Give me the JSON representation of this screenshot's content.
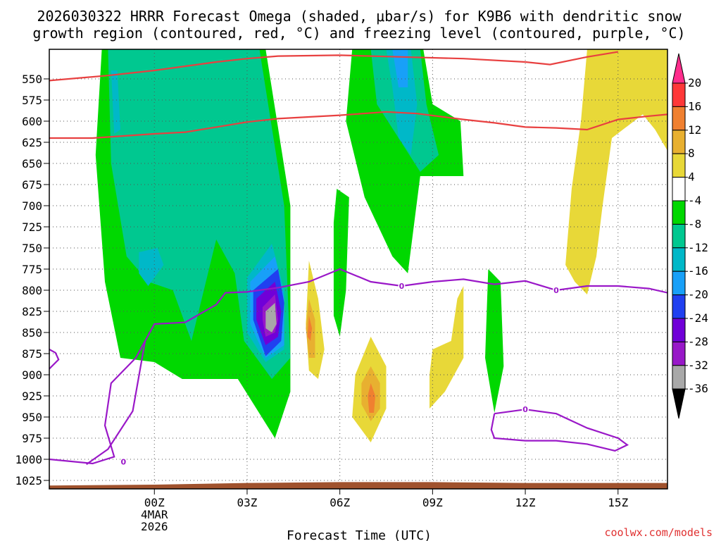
{
  "chart_data": {
    "type": "filled-contour",
    "title_line1": "2026030322 HRRR Forecast Omega (shaded, μbar/s) for K9B6 with dendritic snow",
    "title_line2": "growth region (contoured, red, °C) and freezing level (contoured, purple, °C)",
    "xlabel": "Forecast Time (UTC)",
    "credit": "coolwx.com/models",
    "x_range_hours": [
      -3.4,
      16.6
    ],
    "y_range_hpa": [
      1035,
      515
    ],
    "pressure_ticks": [
      550,
      575,
      600,
      625,
      650,
      675,
      700,
      725,
      750,
      775,
      800,
      825,
      850,
      875,
      900,
      925,
      950,
      975,
      1000,
      1025
    ],
    "time_ticks": [
      {
        "hour": 0,
        "label": "00Z",
        "sub1": "4MAR",
        "sub2": "2026"
      },
      {
        "hour": 3,
        "label": "03Z",
        "sub1": "",
        "sub2": ""
      },
      {
        "hour": 6,
        "label": "06Z",
        "sub1": "",
        "sub2": ""
      },
      {
        "hour": 9,
        "label": "09Z",
        "sub1": "",
        "sub2": ""
      },
      {
        "hour": 12,
        "label": "12Z",
        "sub1": "",
        "sub2": ""
      },
      {
        "hour": 15,
        "label": "15Z",
        "sub1": "",
        "sub2": ""
      }
    ],
    "colorbar": {
      "labels": [
        "20",
        "16",
        "12",
        "8",
        "4",
        "-4",
        "-8",
        "-12",
        "-16",
        "-20",
        "-24",
        "-28",
        "-32",
        "-36"
      ],
      "colors": [
        "#ff2d8c",
        "#ff3838",
        "#f08030",
        "#e8b030",
        "#e8d838",
        "#ffffff",
        "#00d800",
        "#00c890",
        "#00b8c8",
        "#18a0f8",
        "#2040f0",
        "#7000d8",
        "#9818c8",
        "#a8a8a8",
        "#000000"
      ]
    },
    "dgz_lines": [
      [
        [
          -3.4,
          552
        ],
        [
          -1.5,
          546
        ],
        [
          0,
          540
        ],
        [
          1,
          535
        ],
        [
          2,
          530
        ],
        [
          3,
          526
        ],
        [
          4,
          523
        ],
        [
          6,
          522
        ],
        [
          8,
          524
        ],
        [
          10,
          526
        ],
        [
          12,
          530
        ],
        [
          12.8,
          533
        ],
        [
          14,
          524
        ],
        [
          15,
          518
        ]
      ],
      [
        [
          -3.4,
          620
        ],
        [
          -2,
          620
        ],
        [
          0,
          615
        ],
        [
          1,
          613
        ],
        [
          2,
          607
        ],
        [
          3,
          601
        ],
        [
          4,
          597
        ],
        [
          5,
          595
        ],
        [
          6,
          593
        ],
        [
          7.5,
          589
        ],
        [
          8.5,
          591
        ],
        [
          10,
          598
        ],
        [
          11,
          602
        ],
        [
          12,
          607
        ],
        [
          13,
          608
        ],
        [
          14,
          610
        ],
        [
          15,
          598
        ],
        [
          16,
          594
        ],
        [
          16.6,
          592
        ]
      ]
    ],
    "freezing_level": {
      "main": [
        [
          -3.4,
          893
        ],
        [
          -3.1,
          882
        ],
        [
          -3.2,
          874
        ],
        [
          -3.4,
          870
        ]
      ],
      "upper": [
        [
          -2.2,
          1006
        ],
        [
          -1.5,
          988
        ],
        [
          -0.7,
          943
        ],
        [
          -0.3,
          860
        ],
        [
          0,
          840
        ],
        [
          1,
          838
        ],
        [
          2,
          817
        ],
        [
          2.3,
          803
        ],
        [
          3,
          802
        ],
        [
          4,
          797
        ],
        [
          5,
          790
        ],
        [
          6,
          775
        ],
        [
          7,
          790
        ],
        [
          8,
          795
        ],
        [
          9,
          790
        ],
        [
          10,
          787
        ],
        [
          11,
          793
        ],
        [
          12,
          789
        ],
        [
          13,
          800
        ],
        [
          14,
          795
        ],
        [
          15,
          795
        ],
        [
          16,
          798
        ],
        [
          16.6,
          803
        ]
      ],
      "lower_left": [
        [
          -3.4,
          1000
        ],
        [
          -2,
          1005
        ],
        [
          -1.3,
          997
        ],
        [
          -1.6,
          960
        ],
        [
          -1.4,
          910
        ],
        [
          -0.6,
          880
        ],
        [
          -0.3,
          860
        ]
      ],
      "loop": [
        [
          11,
          946
        ],
        [
          12,
          941
        ],
        [
          13,
          946
        ],
        [
          14,
          963
        ],
        [
          15,
          975
        ],
        [
          15.3,
          983
        ],
        [
          14.9,
          990
        ],
        [
          14,
          982
        ],
        [
          13,
          978
        ],
        [
          12,
          978
        ],
        [
          11,
          975
        ],
        [
          10.9,
          965
        ],
        [
          11,
          946
        ]
      ],
      "label": "0",
      "label_positions": [
        [
          -1.0,
          1003
        ],
        [
          8,
          795
        ],
        [
          12,
          941
        ],
        [
          13,
          800
        ]
      ]
    },
    "omega_regions": [
      {
        "level": "-8",
        "color": "#00d800",
        "points": [
          [
            -1.7,
            515
          ],
          [
            3.6,
            515
          ],
          [
            4.4,
            700
          ],
          [
            4.4,
            920
          ],
          [
            3.9,
            975
          ],
          [
            2.7,
            905
          ],
          [
            0.9,
            905
          ],
          [
            0,
            885
          ],
          [
            -1.1,
            880
          ],
          [
            -1.6,
            790
          ],
          [
            -1.9,
            640
          ],
          [
            -1.7,
            515
          ]
        ]
      },
      {
        "level": "-8",
        "color": "#00d800",
        "points": [
          [
            6.4,
            515
          ],
          [
            8.7,
            515
          ],
          [
            9.0,
            580
          ],
          [
            9.9,
            600
          ],
          [
            10.0,
            665
          ],
          [
            8.6,
            665
          ],
          [
            8.2,
            780
          ],
          [
            7.7,
            760
          ],
          [
            6.8,
            690
          ],
          [
            6.2,
            600
          ],
          [
            6.4,
            515
          ]
        ]
      },
      {
        "level": "-8",
        "color": "#00d800",
        "points": [
          [
            5.9,
            680
          ],
          [
            6.3,
            690
          ],
          [
            6.2,
            800
          ],
          [
            6.0,
            855
          ],
          [
            5.8,
            830
          ],
          [
            5.8,
            720
          ],
          [
            5.9,
            680
          ]
        ]
      },
      {
        "level": "-8",
        "color": "#00d800",
        "points": [
          [
            10.8,
            775
          ],
          [
            11.2,
            790
          ],
          [
            11.3,
            890
          ],
          [
            11.0,
            945
          ],
          [
            10.7,
            880
          ],
          [
            10.8,
            775
          ]
        ]
      },
      {
        "level": "-12",
        "color": "#00c890",
        "points": [
          [
            -1.5,
            515
          ],
          [
            3.4,
            515
          ],
          [
            4.2,
            700
          ],
          [
            4.4,
            880
          ],
          [
            3.8,
            905
          ],
          [
            2.9,
            860
          ],
          [
            2.6,
            780
          ],
          [
            2.0,
            740
          ],
          [
            1.2,
            860
          ],
          [
            0.6,
            800
          ],
          [
            -0.2,
            790
          ],
          [
            -0.9,
            760
          ],
          [
            -1.4,
            650
          ],
          [
            -1.5,
            515
          ]
        ]
      },
      {
        "level": "-12",
        "color": "#00c890",
        "points": [
          [
            7.0,
            515
          ],
          [
            8.6,
            515
          ],
          [
            8.8,
            580
          ],
          [
            9.2,
            640
          ],
          [
            8.6,
            660
          ],
          [
            7.9,
            620
          ],
          [
            7.2,
            580
          ],
          [
            7.0,
            515
          ]
        ]
      },
      {
        "level": "-16",
        "color": "#00b8c8",
        "points": [
          [
            -1.4,
            540
          ],
          [
            -1.2,
            540
          ],
          [
            -1.1,
            610
          ],
          [
            -1.3,
            615
          ],
          [
            -1.4,
            540
          ]
        ]
      },
      {
        "level": "-16",
        "color": "#00b8c8",
        "points": [
          [
            -0.5,
            755
          ],
          [
            0.1,
            750
          ],
          [
            0.3,
            770
          ],
          [
            -0.2,
            795
          ],
          [
            -0.5,
            780
          ],
          [
            -0.5,
            755
          ]
        ]
      },
      {
        "level": "-16",
        "color": "#00b8c8",
        "points": [
          [
            3.0,
            785
          ],
          [
            3.8,
            745
          ],
          [
            4.2,
            800
          ],
          [
            4.2,
            870
          ],
          [
            3.6,
            885
          ],
          [
            3.0,
            850
          ],
          [
            3.0,
            785
          ]
        ]
      },
      {
        "level": "-16",
        "color": "#00b8c8",
        "points": [
          [
            7.5,
            515
          ],
          [
            8.3,
            515
          ],
          [
            8.5,
            580
          ],
          [
            8.3,
            640
          ],
          [
            7.9,
            620
          ],
          [
            7.7,
            560
          ],
          [
            7.5,
            515
          ]
        ]
      },
      {
        "level": "-20",
        "color": "#18a0f8",
        "points": [
          [
            3.1,
            790
          ],
          [
            3.9,
            760
          ],
          [
            4.2,
            810
          ],
          [
            4.2,
            865
          ],
          [
            3.6,
            880
          ],
          [
            3.1,
            840
          ],
          [
            3.1,
            790
          ]
        ]
      },
      {
        "level": "-20",
        "color": "#18a0f8",
        "points": [
          [
            7.7,
            515
          ],
          [
            8.2,
            515
          ],
          [
            8.2,
            560
          ],
          [
            7.9,
            560
          ],
          [
            7.7,
            515
          ]
        ]
      },
      {
        "level": "-24",
        "color": "#2040f0",
        "points": [
          [
            3.2,
            800
          ],
          [
            4.0,
            775
          ],
          [
            4.2,
            815
          ],
          [
            4.1,
            860
          ],
          [
            3.6,
            878
          ],
          [
            3.2,
            835
          ],
          [
            3.2,
            800
          ]
        ]
      },
      {
        "level": "-28",
        "color": "#7000d8",
        "points": [
          [
            3.3,
            810
          ],
          [
            3.9,
            790
          ],
          [
            4.1,
            825
          ],
          [
            4.0,
            855
          ],
          [
            3.6,
            865
          ],
          [
            3.3,
            835
          ],
          [
            3.3,
            810
          ]
        ]
      },
      {
        "level": "-32",
        "color": "#9818c8",
        "points": [
          [
            3.5,
            820
          ],
          [
            3.9,
            805
          ],
          [
            4.0,
            835
          ],
          [
            3.9,
            850
          ],
          [
            3.6,
            855
          ],
          [
            3.5,
            835
          ],
          [
            3.5,
            820
          ]
        ]
      },
      {
        "level": "-36",
        "color": "#a8a8a8",
        "points": [
          [
            3.6,
            825
          ],
          [
            3.9,
            815
          ],
          [
            3.95,
            840
          ],
          [
            3.8,
            850
          ],
          [
            3.6,
            845
          ],
          [
            3.6,
            825
          ]
        ]
      },
      {
        "level": "4",
        "color": "#e8d838",
        "points": [
          [
            5.0,
            765
          ],
          [
            5.3,
            810
          ],
          [
            5.5,
            870
          ],
          [
            5.3,
            905
          ],
          [
            5.0,
            895
          ],
          [
            4.9,
            840
          ],
          [
            5.0,
            765
          ]
        ]
      },
      {
        "level": "4",
        "color": "#e8d838",
        "points": [
          [
            7.0,
            855
          ],
          [
            7.5,
            890
          ],
          [
            7.5,
            940
          ],
          [
            7.0,
            980
          ],
          [
            6.4,
            950
          ],
          [
            6.5,
            900
          ],
          [
            7.0,
            855
          ]
        ]
      },
      {
        "level": "4",
        "color": "#e8d838",
        "points": [
          [
            9.0,
            870
          ],
          [
            9.6,
            860
          ],
          [
            9.8,
            810
          ],
          [
            10.0,
            795
          ],
          [
            10.0,
            880
          ],
          [
            9.4,
            920
          ],
          [
            8.9,
            940
          ],
          [
            8.9,
            900
          ],
          [
            9.0,
            870
          ]
        ]
      },
      {
        "level": "4",
        "color": "#e8d838",
        "points": [
          [
            14.0,
            515
          ],
          [
            16.6,
            515
          ],
          [
            16.6,
            635
          ],
          [
            16.2,
            610
          ],
          [
            15.8,
            592
          ],
          [
            14.8,
            620
          ],
          [
            14.5,
            700
          ],
          [
            14.3,
            760
          ],
          [
            14.0,
            805
          ],
          [
            13.6,
            790
          ],
          [
            13.3,
            770
          ],
          [
            13.5,
            680
          ],
          [
            13.8,
            600
          ],
          [
            14.0,
            515
          ]
        ]
      },
      {
        "level": "8",
        "color": "#e8b030",
        "points": [
          [
            5.0,
            810
          ],
          [
            5.2,
            835
          ],
          [
            5.2,
            880
          ],
          [
            5.0,
            880
          ],
          [
            4.9,
            845
          ],
          [
            5.0,
            810
          ]
        ]
      },
      {
        "level": "8",
        "color": "#e8b030",
        "points": [
          [
            7.0,
            890
          ],
          [
            7.3,
            910
          ],
          [
            7.3,
            940
          ],
          [
            7.0,
            955
          ],
          [
            6.7,
            935
          ],
          [
            6.7,
            910
          ],
          [
            7.0,
            890
          ]
        ]
      },
      {
        "level": "12",
        "color": "#f08030",
        "points": [
          [
            7.0,
            910
          ],
          [
            7.15,
            925
          ],
          [
            7.1,
            945
          ],
          [
            6.95,
            945
          ],
          [
            6.9,
            925
          ],
          [
            7.0,
            910
          ]
        ]
      },
      {
        "level": "12",
        "color": "#f08030",
        "points": [
          [
            5.0,
            830
          ],
          [
            5.1,
            845
          ],
          [
            5.05,
            860
          ],
          [
            4.95,
            855
          ],
          [
            5.0,
            830
          ]
        ]
      }
    ],
    "terrain_color": "#a0522d"
  }
}
